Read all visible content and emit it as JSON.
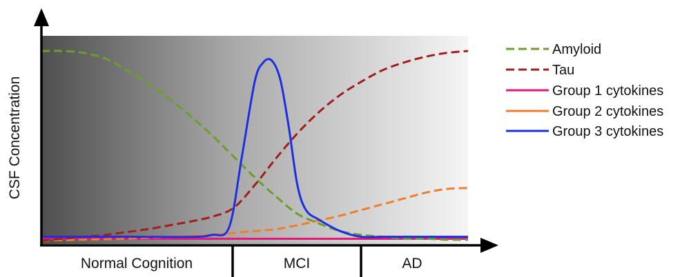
{
  "chart_data": {
    "type": "line",
    "title": "",
    "xlabel": "",
    "ylabel": "CSF Concentration",
    "xlim": [
      0,
      100
    ],
    "ylim": [
      0,
      100
    ],
    "grid": false,
    "legend_position": "right",
    "stages": [
      {
        "label": "Normal Cognition",
        "range": [
          0,
          45
        ]
      },
      {
        "label": "MCI",
        "range": [
          45,
          75
        ]
      },
      {
        "label": "AD",
        "range": [
          75,
          100
        ]
      }
    ],
    "series": [
      {
        "name": "Amyloid",
        "color": "#6a9f2a",
        "dash": true,
        "x": [
          0,
          5,
          10,
          15,
          20,
          25,
          30,
          35,
          40,
          45,
          50,
          55,
          60,
          65,
          70,
          75,
          80,
          85,
          90,
          95,
          100
        ],
        "y": [
          100,
          100,
          99,
          96,
          90,
          83,
          75,
          66,
          56,
          45,
          34,
          24,
          15,
          10,
          6,
          4,
          3,
          2,
          2,
          1.5,
          1.5
        ]
      },
      {
        "name": "Tau",
        "color": "#a31c1c",
        "dash": true,
        "x": [
          0,
          5,
          10,
          15,
          20,
          25,
          30,
          35,
          40,
          45,
          50,
          55,
          60,
          65,
          70,
          75,
          80,
          85,
          90,
          95,
          100
        ],
        "y": [
          1,
          2,
          3,
          4,
          5.5,
          7,
          9,
          11,
          13.5,
          18,
          30,
          44,
          57,
          68,
          77,
          84,
          90,
          94,
          97,
          99,
          100
        ]
      },
      {
        "name": "Group 1 cytokines",
        "color": "#e8157a",
        "dash": false,
        "x": [
          0,
          100
        ],
        "y": [
          2,
          2
        ]
      },
      {
        "name": "Group 2 cytokines",
        "color": "#f07d2a",
        "dash": false,
        "dashed_display": true,
        "x": [
          0,
          10,
          20,
          30,
          40,
          45,
          50,
          55,
          60,
          65,
          70,
          75,
          80,
          85,
          90,
          95,
          100
        ],
        "y": [
          1,
          1.5,
          2,
          3,
          4,
          5,
          6,
          7,
          9,
          11.5,
          14,
          17,
          20,
          23,
          26,
          28,
          28.5
        ]
      },
      {
        "name": "Group 3 cytokines",
        "color": "#1a2fe0",
        "dash": false,
        "x": [
          0,
          20,
          35,
          40,
          44,
          47,
          50,
          52,
          54,
          56,
          58,
          60,
          62,
          65,
          70,
          75,
          80,
          90,
          100
        ],
        "y": [
          3,
          3,
          3,
          4,
          8,
          45,
          84,
          94,
          95,
          85,
          60,
          30,
          17,
          12,
          6,
          3,
          3,
          3,
          3
        ]
      }
    ]
  },
  "legend": {
    "items": [
      {
        "label": "Amyloid",
        "color": "#6a9f2a",
        "dashed": true
      },
      {
        "label": "Tau",
        "color": "#a31c1c",
        "dashed": true
      },
      {
        "label": "Group 1 cytokines",
        "color": "#e8157a",
        "dashed": false
      },
      {
        "label": "Group 2 cytokines",
        "color": "#f07d2a",
        "dashed": false
      },
      {
        "label": "Group 3 cytokines",
        "color": "#1a2fe0",
        "dashed": false
      }
    ]
  }
}
